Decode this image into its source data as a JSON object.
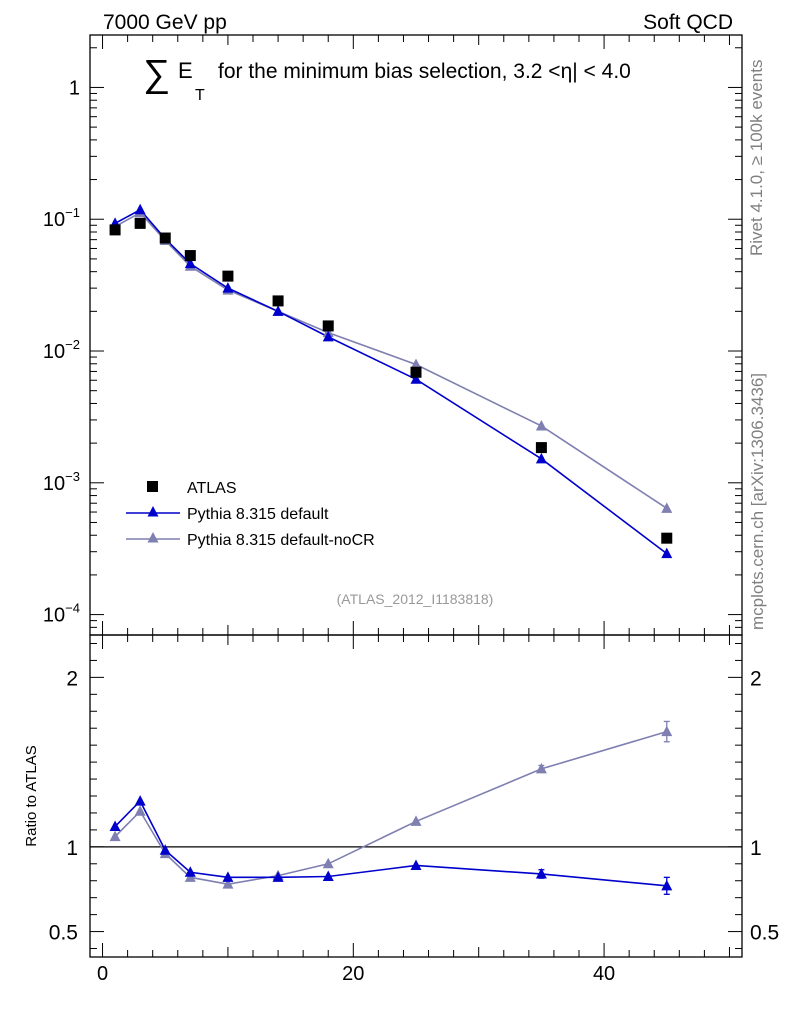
{
  "header": {
    "left": "7000 GeV pp",
    "right": "Soft QCD"
  },
  "title": {
    "sum": "∑",
    "e": "E",
    "t": "T",
    "rest": "for the minimum bias selection, 3.2 <η| < 4.0"
  },
  "side": {
    "rivet": "Rivet 4.1.0, ≥ 100k events",
    "mcplots": "mcplots.cern.ch [arXiv:1306.3436]"
  },
  "analysis_tag": "(ATLAS_2012_I1183818)",
  "colors": {
    "atlas": "#000000",
    "default": "#0000cc",
    "nocr": "#7f7fb2"
  },
  "chart_data": [
    {
      "type": "line",
      "panel": "main",
      "yscale": "log",
      "ylim": [
        7e-05,
        2.5
      ],
      "xlim": [
        -1,
        51
      ],
      "yticks": [
        {
          "value": 1,
          "base": "1",
          "exp": ""
        },
        {
          "value": 0.1,
          "base": "10",
          "exp": "−1"
        },
        {
          "value": 0.01,
          "base": "10",
          "exp": "−2"
        },
        {
          "value": 0.001,
          "base": "10",
          "exp": "−3"
        },
        {
          "value": 0.0001,
          "base": "10",
          "exp": "−4"
        }
      ],
      "legend_position": "bottom-left",
      "series": [
        {
          "name": "ATLAS",
          "style": "square",
          "x": [
            1,
            3,
            5,
            7,
            10,
            14,
            18,
            25,
            35,
            45
          ],
          "y": [
            0.083,
            0.093,
            0.072,
            0.053,
            0.037,
            0.024,
            0.0155,
            0.0069,
            0.00185,
            0.00038
          ]
        },
        {
          "name": "Pythia 8.315 default",
          "style": "triangle",
          "x": [
            1,
            3,
            5,
            7,
            10,
            14,
            18,
            25,
            35,
            45
          ],
          "y": [
            0.093,
            0.118,
            0.071,
            0.046,
            0.03,
            0.02,
            0.0128,
            0.0061,
            0.00152,
            0.00029
          ]
        },
        {
          "name": "Pythia 8.315 default-noCR",
          "style": "triangle",
          "x": [
            1,
            3,
            5,
            7,
            10,
            14,
            18,
            25,
            35,
            45
          ],
          "y": [
            0.088,
            0.112,
            0.069,
            0.044,
            0.029,
            0.02,
            0.0138,
            0.0079,
            0.0027,
            0.00064
          ]
        }
      ]
    },
    {
      "type": "line",
      "panel": "ratio",
      "ylabel": "Ratio to ATLAS",
      "ylim": [
        0.35,
        2.25
      ],
      "xlim": [
        -1,
        51
      ],
      "yticks": [
        {
          "value": 2,
          "label": "2"
        },
        {
          "value": 1,
          "label": "1"
        },
        {
          "value": 0.5,
          "label": "0.5"
        }
      ],
      "xticks": [
        {
          "value": 0,
          "label": "0"
        },
        {
          "value": 20,
          "label": "20"
        },
        {
          "value": 40,
          "label": "40"
        }
      ],
      "reference_line": 1,
      "series": [
        {
          "name": "Pythia 8.315 default",
          "x": [
            1,
            3,
            5,
            7,
            10,
            14,
            18,
            25,
            35,
            45
          ],
          "y": [
            1.12,
            1.27,
            0.98,
            0.85,
            0.82,
            0.82,
            0.825,
            0.89,
            0.84,
            0.77
          ],
          "err": [
            0,
            0,
            0,
            0,
            0,
            0,
            0,
            0,
            0.025,
            0.05
          ]
        },
        {
          "name": "Pythia 8.315 default-noCR",
          "x": [
            1,
            3,
            5,
            7,
            10,
            14,
            18,
            25,
            35,
            45
          ],
          "y": [
            1.06,
            1.21,
            0.96,
            0.82,
            0.78,
            0.83,
            0.9,
            1.15,
            1.46,
            1.68
          ],
          "err": [
            0,
            0,
            0,
            0,
            0,
            0,
            0,
            0,
            0.02,
            0.06
          ]
        }
      ]
    }
  ]
}
